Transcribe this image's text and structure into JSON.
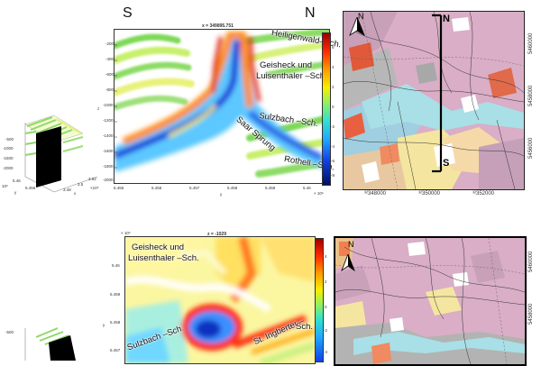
{
  "top_section": {
    "south_label": "S",
    "north_label": "N",
    "slice_title": "x = 349895.751",
    "annotations": {
      "heiligenwald": "Heiligenwald–Sch.",
      "geisheck": "Geisheck und",
      "luisenthaler": "Luisenthaler –Sch.",
      "sulzbach": "Sulzbach –Sch.",
      "saarsprung": "Saar Sprung",
      "rothell": "Rothell –Sch."
    },
    "y_ticks": [
      "-200",
      "-400",
      "-600",
      "-800",
      "-1000",
      "-1200",
      "-1400",
      "-1600",
      "-1800",
      "-2000"
    ],
    "y_label": "z",
    "x_ticks": [
      "5.455",
      "5.456",
      "5.457",
      "5.458",
      "5.459",
      "5.46"
    ],
    "x_label": "y",
    "x_exp": "× 10⁶",
    "cbar_ticks": [
      "6",
      "4",
      "2",
      "0",
      "-2",
      "-4",
      "-6",
      "-8"
    ],
    "map": {
      "north_label": "N",
      "south_label": "S",
      "north_arrow": "N",
      "x_ticks": [
        "³²348000",
        "³²350000",
        "³²352000"
      ],
      "y_ticks": [
        "5460000",
        "5458000",
        "5456000"
      ]
    },
    "cube": {
      "z_ticks": [
        "-500",
        "-1000",
        "-1500",
        "-2000"
      ],
      "x_ticks": [
        "3.48",
        "3.5",
        "3.52"
      ],
      "x_exp": "×10⁵",
      "y_ticks": [
        "5.456",
        "5.46"
      ],
      "y_exp": "10⁶",
      "x_label": "x",
      "y_label": "y"
    }
  },
  "bottom_section": {
    "slice_title": "z = -1029",
    "exp_label": "× 10⁶",
    "annotations": {
      "geisheck": "Geisheck und",
      "luisenthaler": "Luisenthaler –Sch.",
      "sulzbach": "Sulzbach –Sch.",
      "ingberter": "St. Ingberter –",
      "ingberter2": "Sch."
    },
    "y_ticks": [
      "5.46",
      "5.459",
      "5.458",
      "5.457"
    ],
    "y_label": "y",
    "cbar_ticks": [
      "4",
      "2",
      "0",
      "-2",
      "-4"
    ],
    "map": {
      "north_arrow": "N",
      "y_ticks": [
        "5460000",
        "5458000"
      ]
    },
    "cube": {
      "z_ticks": [
        "-500"
      ]
    }
  }
}
